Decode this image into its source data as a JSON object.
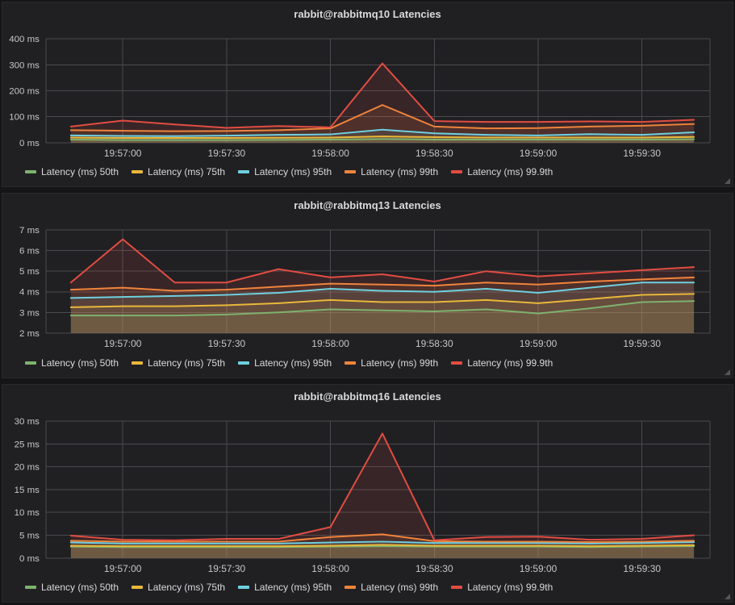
{
  "theme": {
    "page_bg": "#151517",
    "panel_bg": "#202023",
    "panel_border": "#29292c",
    "grid_color": "#4a4a4e",
    "axis_text_color": "#c7c7c9",
    "title_color": "#d8d9da",
    "legend_text_color": "#d8d9da"
  },
  "chart_data": [
    {
      "type": "area",
      "title": "rabbit@rabbitmq10 Latencies",
      "unit": "ms",
      "ylim": [
        0,
        400
      ],
      "grid": true,
      "legend_position": "bottom",
      "y_ticks": [
        {
          "value": 0,
          "label": "0 ms"
        },
        {
          "value": 100,
          "label": "100 ms"
        },
        {
          "value": 200,
          "label": "200 ms"
        },
        {
          "value": 300,
          "label": "300 ms"
        },
        {
          "value": 400,
          "label": "400 ms"
        }
      ],
      "x_times": [
        "19:56:45",
        "19:57:00",
        "19:57:15",
        "19:57:30",
        "19:57:45",
        "19:58:00",
        "19:58:15",
        "19:58:30",
        "19:58:45",
        "19:59:00",
        "19:59:15",
        "19:59:30",
        "19:59:45"
      ],
      "x_ticks": [
        {
          "index": 1,
          "label": "19:57:00"
        },
        {
          "index": 3,
          "label": "19:57:30"
        },
        {
          "index": 5,
          "label": "19:58:00"
        },
        {
          "index": 7,
          "label": "19:58:30"
        },
        {
          "index": 9,
          "label": "19:59:00"
        },
        {
          "index": 11,
          "label": "19:59:30"
        }
      ],
      "series": [
        {
          "name": "Latency (ms) 50th",
          "color": "#7eb26d",
          "values": [
            12,
            10,
            10,
            10,
            11,
            12,
            14,
            12,
            12,
            12,
            12,
            12,
            13
          ]
        },
        {
          "name": "Latency (ms) 75th",
          "color": "#eab839",
          "values": [
            20,
            18,
            18,
            18,
            19,
            20,
            24,
            21,
            20,
            20,
            20,
            20,
            22
          ]
        },
        {
          "name": "Latency (ms) 95th",
          "color": "#6ed0e0",
          "values": [
            28,
            26,
            25,
            27,
            30,
            32,
            50,
            36,
            30,
            28,
            33,
            30,
            40
          ]
        },
        {
          "name": "Latency (ms) 99th",
          "color": "#ef843c",
          "values": [
            48,
            46,
            44,
            45,
            48,
            55,
            145,
            62,
            55,
            56,
            62,
            65,
            72
          ]
        },
        {
          "name": "Latency (ms) 99.9th",
          "color": "#e24d42",
          "values": [
            62,
            85,
            70,
            57,
            64,
            59,
            305,
            83,
            80,
            80,
            82,
            80,
            88
          ]
        }
      ]
    },
    {
      "type": "area",
      "title": "rabbit@rabbitmq13 Latencies",
      "unit": "ms",
      "ylim": [
        2,
        7
      ],
      "grid": true,
      "legend_position": "bottom",
      "y_ticks": [
        {
          "value": 2,
          "label": "2 ms"
        },
        {
          "value": 3,
          "label": "3 ms"
        },
        {
          "value": 4,
          "label": "4 ms"
        },
        {
          "value": 5,
          "label": "5 ms"
        },
        {
          "value": 6,
          "label": "6 ms"
        },
        {
          "value": 7,
          "label": "7 ms"
        }
      ],
      "x_times": [
        "19:56:45",
        "19:57:00",
        "19:57:15",
        "19:57:30",
        "19:57:45",
        "19:58:00",
        "19:58:15",
        "19:58:30",
        "19:58:45",
        "19:59:00",
        "19:59:15",
        "19:59:30",
        "19:59:45"
      ],
      "x_ticks": [
        {
          "index": 1,
          "label": "19:57:00"
        },
        {
          "index": 3,
          "label": "19:57:30"
        },
        {
          "index": 5,
          "label": "19:58:00"
        },
        {
          "index": 7,
          "label": "19:58:30"
        },
        {
          "index": 9,
          "label": "19:59:00"
        },
        {
          "index": 11,
          "label": "19:59:30"
        }
      ],
      "series": [
        {
          "name": "Latency (ms) 50th",
          "color": "#7eb26d",
          "values": [
            2.85,
            2.85,
            2.85,
            2.9,
            3.0,
            3.15,
            3.1,
            3.05,
            3.15,
            2.95,
            3.2,
            3.5,
            3.55
          ]
        },
        {
          "name": "Latency (ms) 75th",
          "color": "#eab839",
          "values": [
            3.25,
            3.3,
            3.3,
            3.35,
            3.45,
            3.6,
            3.5,
            3.5,
            3.6,
            3.45,
            3.65,
            3.85,
            3.9
          ]
        },
        {
          "name": "Latency (ms) 95th",
          "color": "#6ed0e0",
          "values": [
            3.7,
            3.75,
            3.8,
            3.85,
            3.95,
            4.15,
            4.05,
            4.0,
            4.15,
            3.95,
            4.2,
            4.45,
            4.45
          ]
        },
        {
          "name": "Latency (ms) 99th",
          "color": "#ef843c",
          "values": [
            4.1,
            4.2,
            4.05,
            4.1,
            4.25,
            4.4,
            4.35,
            4.3,
            4.45,
            4.35,
            4.5,
            4.6,
            4.7
          ]
        },
        {
          "name": "Latency (ms) 99.9th",
          "color": "#e24d42",
          "values": [
            4.45,
            6.55,
            4.45,
            4.45,
            5.1,
            4.7,
            4.85,
            4.5,
            5.0,
            4.75,
            4.9,
            5.05,
            5.2
          ]
        }
      ]
    },
    {
      "type": "area",
      "title": "rabbit@rabbitmq16 Latencies",
      "unit": "ms",
      "ylim": [
        0,
        30
      ],
      "grid": true,
      "legend_position": "bottom",
      "y_ticks": [
        {
          "value": 0,
          "label": "0 ms"
        },
        {
          "value": 5,
          "label": "5 ms"
        },
        {
          "value": 10,
          "label": "10 ms"
        },
        {
          "value": 15,
          "label": "15 ms"
        },
        {
          "value": 20,
          "label": "20 ms"
        },
        {
          "value": 25,
          "label": "25 ms"
        },
        {
          "value": 30,
          "label": "30 ms"
        }
      ],
      "x_times": [
        "19:56:45",
        "19:57:00",
        "19:57:15",
        "19:57:30",
        "19:57:45",
        "19:58:00",
        "19:58:15",
        "19:58:30",
        "19:58:45",
        "19:59:00",
        "19:59:15",
        "19:59:30",
        "19:59:45"
      ],
      "x_ticks": [
        {
          "index": 1,
          "label": "19:57:00"
        },
        {
          "index": 3,
          "label": "19:57:30"
        },
        {
          "index": 5,
          "label": "19:58:00"
        },
        {
          "index": 7,
          "label": "19:58:30"
        },
        {
          "index": 9,
          "label": "19:59:00"
        },
        {
          "index": 11,
          "label": "19:59:30"
        }
      ],
      "series": [
        {
          "name": "Latency (ms) 50th",
          "color": "#7eb26d",
          "values": [
            2.5,
            2.4,
            2.4,
            2.4,
            2.4,
            2.5,
            2.6,
            2.5,
            2.5,
            2.5,
            2.4,
            2.5,
            2.6
          ]
        },
        {
          "name": "Latency (ms) 75th",
          "color": "#eab839",
          "values": [
            2.7,
            2.6,
            2.6,
            2.6,
            2.6,
            2.7,
            2.9,
            2.7,
            2.7,
            2.7,
            2.6,
            2.7,
            2.8
          ]
        },
        {
          "name": "Latency (ms) 95th",
          "color": "#6ed0e0",
          "values": [
            3.4,
            3.2,
            3.2,
            3.2,
            3.2,
            3.4,
            3.6,
            3.3,
            3.3,
            3.3,
            3.2,
            3.3,
            3.5
          ]
        },
        {
          "name": "Latency (ms) 99th",
          "color": "#ef843c",
          "values": [
            3.8,
            3.6,
            3.6,
            3.6,
            3.6,
            4.6,
            5.2,
            3.7,
            3.6,
            3.6,
            3.5,
            3.6,
            3.8
          ]
        },
        {
          "name": "Latency (ms) 99.9th",
          "color": "#e24d42",
          "values": [
            4.9,
            4.0,
            3.9,
            4.2,
            4.2,
            6.8,
            27.3,
            3.9,
            4.6,
            4.7,
            4.0,
            4.2,
            5.0
          ]
        }
      ]
    }
  ]
}
